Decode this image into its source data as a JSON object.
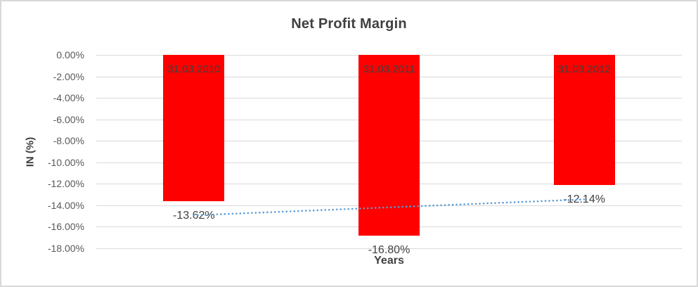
{
  "chart_data": {
    "type": "bar",
    "title": "Net Profit Margin",
    "xlabel": "Years",
    "ylabel": "IN (%)",
    "categories": [
      "31.03.2010",
      "31.03.2011",
      "31.03.2012"
    ],
    "values": [
      -13.62,
      -16.8,
      -12.14
    ],
    "value_labels": [
      "-13.62%",
      "-16.80%",
      "-12.14%"
    ],
    "y_ticks": [
      "0.00%",
      "-2.00%",
      "-4.00%",
      "-6.00%",
      "-8.00%",
      "-10.00%",
      "-12.00%",
      "-14.00%",
      "-16.00%",
      "-18.00%"
    ],
    "ylim": [
      -18,
      0
    ],
    "grid": true,
    "legend": "none",
    "bar_color": "#FF0000",
    "category_label_color": "#404040",
    "value_label_color": "#404040",
    "tick_color": "#595959",
    "gridline_color": "#D9D9D9",
    "trendline": {
      "type": "linear",
      "style": "dotted",
      "color": "#5B9BD5",
      "start_value": -14.93,
      "end_value": -13.45
    }
  }
}
